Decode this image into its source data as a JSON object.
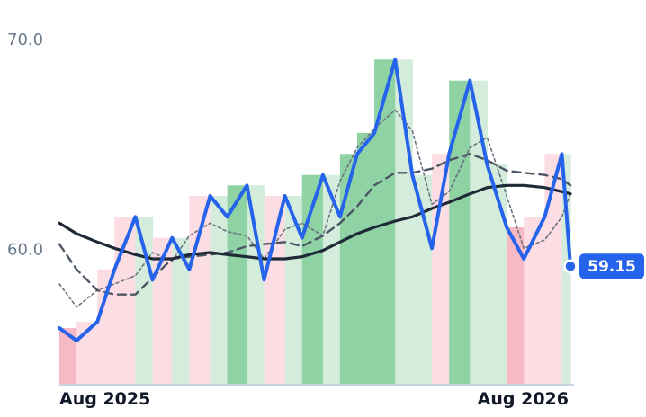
{
  "chart_data": {
    "type": "line",
    "y_ticks": [
      "70.0",
      "60.0"
    ],
    "x_ticks": [
      "Aug 2025",
      "Aug 2026"
    ],
    "ylim": [
      53.5,
      71.5
    ],
    "grid": false,
    "last_value_label": "59.15",
    "colors": {
      "price": "#2563eb",
      "ma_long": "#1f2937",
      "ma_mid": "#4b5563",
      "ma_short": "#6b7280",
      "band_up": "#8fd3a5",
      "band_up_light": "#d3ecdc",
      "band_down": "#f7b9c4",
      "band_down_light": "#fcdde3",
      "axis": "#cbd5e1"
    },
    "x": [
      "2025-07-01",
      "2025-07-15",
      "2025-08-01",
      "2025-08-15",
      "2025-09-01",
      "2025-09-15",
      "2025-10-01",
      "2025-10-15",
      "2025-11-01",
      "2025-11-15",
      "2025-12-01",
      "2025-12-15",
      "2026-01-01",
      "2026-01-15",
      "2026-02-01",
      "2026-02-15",
      "2026-03-01",
      "2026-03-15",
      "2026-04-01",
      "2026-04-15",
      "2026-05-01",
      "2026-05-15",
      "2026-06-01",
      "2026-06-15",
      "2026-07-01",
      "2026-07-15",
      "2026-08-01",
      "2026-08-15",
      "2026-08-22"
    ],
    "series": [
      {
        "name": "",
        "role": "price",
        "values": [
          56.2,
          55.6,
          56.5,
          59.0,
          61.5,
          58.5,
          60.5,
          59.0,
          62.5,
          61.5,
          63.0,
          58.5,
          62.5,
          60.5,
          63.5,
          61.5,
          64.5,
          65.5,
          69.0,
          63.5,
          60.0,
          64.5,
          68.0,
          64.0,
          61.0,
          59.5,
          61.5,
          64.5,
          59.15
        ]
      },
      {
        "name": "",
        "role": "ma_long",
        "values": [
          61.2,
          60.7,
          60.3,
          60.0,
          59.7,
          59.5,
          59.5,
          59.7,
          59.8,
          59.7,
          59.6,
          59.5,
          59.5,
          59.6,
          59.9,
          60.3,
          60.7,
          61.0,
          61.3,
          61.5,
          61.9,
          62.2,
          62.6,
          62.9,
          63.0,
          63.0,
          62.9,
          62.7,
          62.6
        ]
      },
      {
        "name": "",
        "role": "ma_mid",
        "values": [
          60.2,
          59.0,
          58.0,
          57.8,
          57.8,
          58.6,
          59.5,
          59.6,
          59.7,
          59.8,
          60.1,
          60.2,
          60.3,
          60.1,
          60.6,
          61.2,
          62.0,
          63.0,
          63.6,
          63.6,
          63.8,
          64.2,
          64.5,
          64.2,
          63.7,
          63.6,
          63.5,
          63.3,
          63.0
        ]
      },
      {
        "name": "",
        "role": "ma_short",
        "values": [
          58.3,
          57.2,
          58.0,
          58.3,
          58.7,
          59.8,
          59.4,
          60.6,
          61.2,
          60.8,
          60.6,
          59.5,
          60.9,
          61.2,
          60.6,
          63.2,
          64.8,
          65.7,
          66.6,
          65.6,
          62.1,
          62.7,
          64.8,
          65.3,
          62.5,
          60.0,
          60.4,
          61.5,
          62.6
        ]
      }
    ]
  }
}
